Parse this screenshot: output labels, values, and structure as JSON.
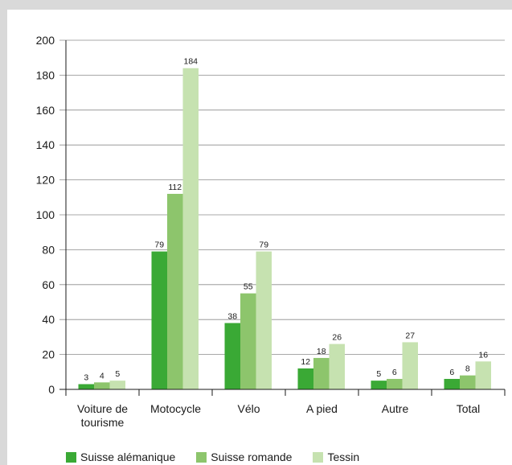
{
  "chart_data": {
    "type": "bar",
    "categories": [
      [
        "Voiture de",
        "tourisme"
      ],
      [
        "Motocycle"
      ],
      [
        "Vélo"
      ],
      [
        "A pied"
      ],
      [
        "Autre"
      ],
      [
        "Total"
      ]
    ],
    "series": [
      {
        "name": "Suisse alémanique",
        "color": "#3aa935",
        "values": [
          3,
          79,
          38,
          12,
          5,
          6
        ]
      },
      {
        "name": "Suisse romande",
        "color": "#8dc56c",
        "values": [
          4,
          112,
          55,
          18,
          6,
          8
        ]
      },
      {
        "name": "Tessin",
        "color": "#c6e2b0",
        "values": [
          5,
          184,
          79,
          26,
          27,
          16
        ]
      }
    ],
    "ylim": [
      0,
      200
    ],
    "yticks": [
      0,
      20,
      40,
      60,
      80,
      100,
      120,
      140,
      160,
      180,
      200
    ],
    "grid": true,
    "legend_position": "bottom-left",
    "title": "",
    "xlabel": "",
    "ylabel": ""
  }
}
